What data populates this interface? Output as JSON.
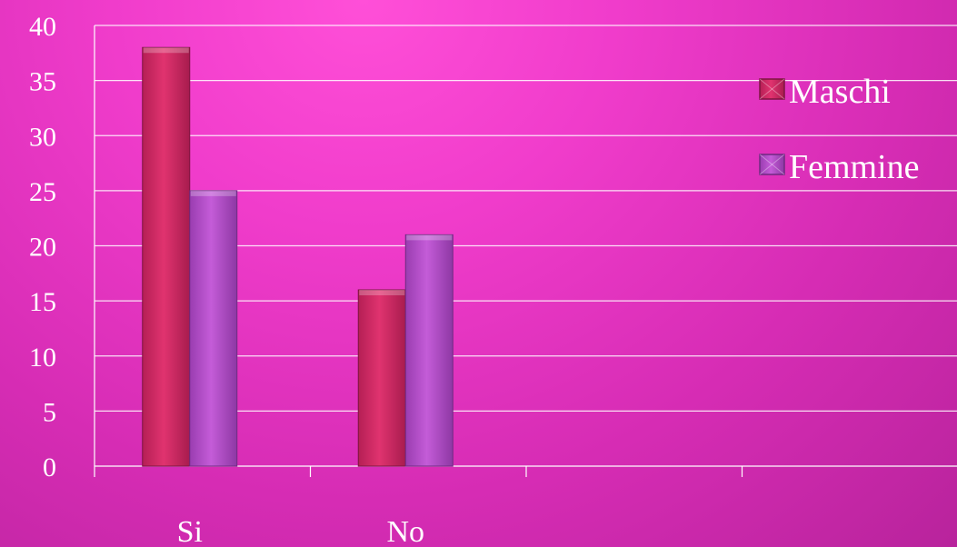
{
  "chart_data": {
    "type": "bar",
    "categories": [
      "Si",
      "No",
      "",
      ""
    ],
    "series": [
      {
        "name": "Maschi",
        "values": [
          38,
          16,
          null,
          null
        ],
        "color": "#d42a6a"
      },
      {
        "name": "Femmine",
        "values": [
          25,
          21,
          null,
          null
        ],
        "color": "#b24fc8"
      }
    ],
    "ylim": [
      0,
      40
    ],
    "yticks": [
      0,
      5,
      10,
      15,
      20,
      25,
      30,
      35,
      40
    ],
    "grid": true,
    "legend_position": "right",
    "title": "",
    "xlabel": "",
    "ylabel": ""
  }
}
